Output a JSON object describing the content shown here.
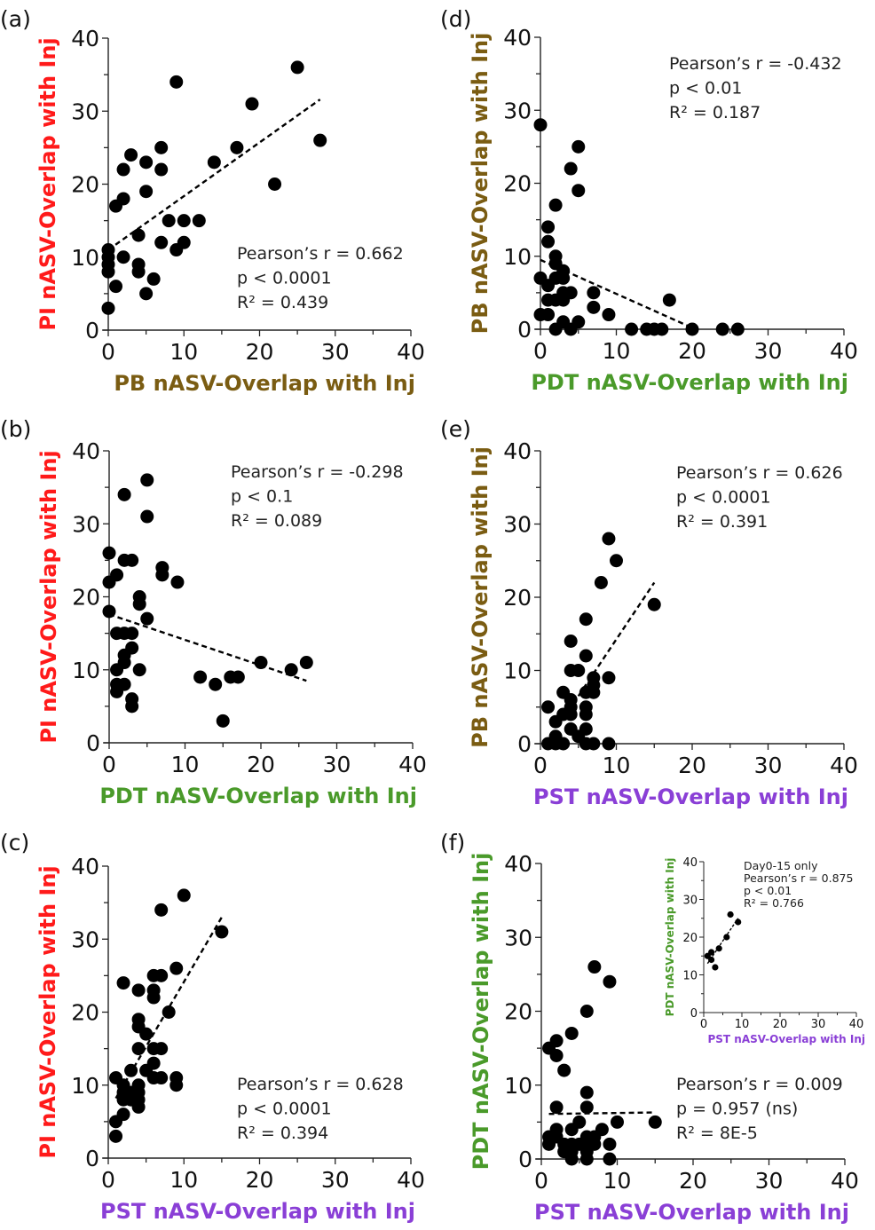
{
  "colors": {
    "PI": "#ff1a1a",
    "PB": "#7a5c12",
    "PDT": "#4a9a2a",
    "PST": "#8a3fd6",
    "points": "#000000",
    "axis": "#222222"
  },
  "chart_data": [
    {
      "id": "a",
      "type": "scatter",
      "panel_label": "(a)",
      "xlabel": "PB nASV-Overlap with Inj",
      "xlabel_group": "PB",
      "ylabel": "PI nASV-Overlap with Inj",
      "ylabel_group": "PI",
      "xlim": [
        0,
        40
      ],
      "ylim": [
        0,
        40
      ],
      "xticks": [
        "0",
        "10",
        "20",
        "30",
        "40"
      ],
      "yticks": [
        "0",
        "10",
        "20",
        "30",
        "40"
      ],
      "grid": false,
      "stats": [
        "Pearson’s r = 0.662",
        "p < 0.0001",
        "R² = 0.439"
      ],
      "stats_position": "bottom-right",
      "fit_line": {
        "x": [
          0,
          28
        ],
        "y": [
          11,
          31.6
        ]
      },
      "points": [
        [
          0,
          3
        ],
        [
          0,
          8
        ],
        [
          0,
          9
        ],
        [
          0,
          10
        ],
        [
          0,
          11
        ],
        [
          1,
          6
        ],
        [
          1,
          17
        ],
        [
          2,
          10
        ],
        [
          2,
          18
        ],
        [
          2,
          22
        ],
        [
          3,
          24
        ],
        [
          4,
          8
        ],
        [
          4,
          9
        ],
        [
          4,
          13
        ],
        [
          5,
          5
        ],
        [
          5,
          19
        ],
        [
          5,
          23
        ],
        [
          6,
          7
        ],
        [
          7,
          12
        ],
        [
          7,
          22
        ],
        [
          7,
          25
        ],
        [
          8,
          15
        ],
        [
          9,
          11
        ],
        [
          9,
          34
        ],
        [
          10,
          12
        ],
        [
          10,
          15
        ],
        [
          12,
          15
        ],
        [
          14,
          23
        ],
        [
          17,
          25
        ],
        [
          19,
          31
        ],
        [
          22,
          20
        ],
        [
          25,
          36
        ],
        [
          28,
          26
        ]
      ]
    },
    {
      "id": "b",
      "type": "scatter",
      "panel_label": "(b)",
      "xlabel": "PDT nASV-Overlap with Inj",
      "xlabel_group": "PDT",
      "ylabel": "PI nASV-Overlap with Inj",
      "ylabel_group": "PI",
      "xlim": [
        0,
        40
      ],
      "ylim": [
        0,
        40
      ],
      "xticks": [
        "0",
        "10",
        "20",
        "30",
        "40"
      ],
      "yticks": [
        "0",
        "10",
        "20",
        "30",
        "40"
      ],
      "grid": false,
      "stats": [
        "Pearson’s r = -0.298",
        "p < 0.1",
        "R² = 0.089"
      ],
      "stats_position": "top-right",
      "fit_line": {
        "x": [
          0,
          26
        ],
        "y": [
          17.6,
          8.5
        ]
      },
      "points": [
        [
          0,
          18
        ],
        [
          0,
          22
        ],
        [
          0,
          26
        ],
        [
          1,
          7
        ],
        [
          1,
          8
        ],
        [
          1,
          10
        ],
        [
          1,
          15
        ],
        [
          1,
          23
        ],
        [
          2,
          8
        ],
        [
          2,
          11
        ],
        [
          2,
          12
        ],
        [
          2,
          15
        ],
        [
          2,
          25
        ],
        [
          2,
          34
        ],
        [
          3,
          5
        ],
        [
          3,
          6
        ],
        [
          3,
          13
        ],
        [
          3,
          15
        ],
        [
          3,
          25
        ],
        [
          4,
          10
        ],
        [
          4,
          19
        ],
        [
          4,
          20
        ],
        [
          5,
          17
        ],
        [
          5,
          31
        ],
        [
          5,
          36
        ],
        [
          7,
          23
        ],
        [
          7,
          24
        ],
        [
          9,
          22
        ],
        [
          12,
          9
        ],
        [
          14,
          8
        ],
        [
          15,
          3
        ],
        [
          16,
          9
        ],
        [
          17,
          9
        ],
        [
          20,
          11
        ],
        [
          24,
          10
        ],
        [
          26,
          11
        ]
      ]
    },
    {
      "id": "c",
      "type": "scatter",
      "panel_label": "(c)",
      "xlabel": "PST nASV-Overlap with Inj",
      "xlabel_group": "PST",
      "ylabel": "PI nASV-Overlap with Inj",
      "ylabel_group": "PI",
      "xlim": [
        0,
        40
      ],
      "ylim": [
        0,
        40
      ],
      "xticks": [
        "0",
        "10",
        "20",
        "30",
        "40"
      ],
      "yticks": [
        "0",
        "10",
        "20",
        "30",
        "40"
      ],
      "grid": false,
      "stats": [
        "Pearson’s r = 0.628",
        "p < 0.0001",
        "R² = 0.394"
      ],
      "stats_position": "bottom-right",
      "fit_line": {
        "x": [
          1,
          15
        ],
        "y": [
          8.2,
          33
        ]
      },
      "points": [
        [
          1,
          3
        ],
        [
          1,
          5
        ],
        [
          1,
          11
        ],
        [
          2,
          6
        ],
        [
          2,
          8
        ],
        [
          2,
          9
        ],
        [
          2,
          10
        ],
        [
          2,
          24
        ],
        [
          3,
          8
        ],
        [
          3,
          9
        ],
        [
          3,
          12
        ],
        [
          4,
          7
        ],
        [
          4,
          8
        ],
        [
          4,
          9
        ],
        [
          4,
          10
        ],
        [
          4,
          15
        ],
        [
          4,
          18
        ],
        [
          4,
          19
        ],
        [
          4,
          23
        ],
        [
          5,
          12
        ],
        [
          5,
          17
        ],
        [
          6,
          11
        ],
        [
          6,
          13
        ],
        [
          6,
          15
        ],
        [
          6,
          22
        ],
        [
          6,
          23
        ],
        [
          6,
          25
        ],
        [
          7,
          11
        ],
        [
          7,
          15
        ],
        [
          7,
          25
        ],
        [
          7,
          34
        ],
        [
          8,
          20
        ],
        [
          9,
          10
        ],
        [
          9,
          11
        ],
        [
          9,
          26
        ],
        [
          10,
          36
        ],
        [
          15,
          31
        ]
      ]
    },
    {
      "id": "d",
      "type": "scatter",
      "panel_label": "(d)",
      "xlabel": "PDT nASV-Overlap with Inj",
      "xlabel_group": "PDT",
      "ylabel": "PB nASV-Overlap with Inj",
      "ylabel_group": "PB",
      "xlim": [
        0,
        40
      ],
      "ylim": [
        0,
        40
      ],
      "xticks": [
        "0",
        "10",
        "20",
        "30",
        "40"
      ],
      "yticks": [
        "0",
        "10",
        "20",
        "30",
        "40"
      ],
      "grid": false,
      "stats": [
        "Pearson’s r = -0.432",
        "p < 0.01",
        "R² = 0.187"
      ],
      "stats_position": "top-right",
      "fit_line": {
        "x": [
          0,
          20
        ],
        "y": [
          9.5,
          0.2
        ]
      },
      "points": [
        [
          0,
          2
        ],
        [
          0,
          7
        ],
        [
          0,
          28
        ],
        [
          1,
          2
        ],
        [
          1,
          4
        ],
        [
          1,
          6
        ],
        [
          1,
          12
        ],
        [
          1,
          14
        ],
        [
          2,
          0
        ],
        [
          2,
          4
        ],
        [
          2,
          7
        ],
        [
          2,
          9
        ],
        [
          2,
          10
        ],
        [
          2,
          17
        ],
        [
          3,
          1
        ],
        [
          3,
          4
        ],
        [
          3,
          5
        ],
        [
          3,
          7
        ],
        [
          3,
          8
        ],
        [
          4,
          0
        ],
        [
          4,
          5
        ],
        [
          4,
          22
        ],
        [
          5,
          1
        ],
        [
          5,
          19
        ],
        [
          5,
          25
        ],
        [
          7,
          3
        ],
        [
          7,
          5
        ],
        [
          9,
          2
        ],
        [
          12,
          0
        ],
        [
          14,
          0
        ],
        [
          15,
          0
        ],
        [
          16,
          0
        ],
        [
          17,
          4
        ],
        [
          20,
          0
        ],
        [
          24,
          0
        ],
        [
          26,
          0
        ]
      ]
    },
    {
      "id": "e",
      "type": "scatter",
      "panel_label": "(e)",
      "xlabel": "PST nASV-Overlap with Inj",
      "xlabel_group": "PST",
      "ylabel": "PB nASV-Overlap with Inj",
      "ylabel_group": "PB",
      "xlim": [
        0,
        40
      ],
      "ylim": [
        0,
        40
      ],
      "xticks": [
        "0",
        "10",
        "20",
        "30",
        "40"
      ],
      "yticks": [
        "0",
        "10",
        "20",
        "30",
        "40"
      ],
      "grid": false,
      "stats": [
        "Pearson’s r = 0.626",
        "p < 0.0001",
        "R² = 0.391"
      ],
      "stats_position": "top-right",
      "fit_line": {
        "x": [
          5,
          15
        ],
        "y": [
          6.5,
          22
        ]
      },
      "points": [
        [
          1,
          0
        ],
        [
          1,
          5
        ],
        [
          2,
          0
        ],
        [
          2,
          1
        ],
        [
          2,
          3
        ],
        [
          3,
          0
        ],
        [
          3,
          4
        ],
        [
          3,
          7
        ],
        [
          4,
          2
        ],
        [
          4,
          4
        ],
        [
          4,
          5
        ],
        [
          4,
          6
        ],
        [
          4,
          10
        ],
        [
          4,
          14
        ],
        [
          5,
          1
        ],
        [
          5,
          10
        ],
        [
          6,
          0
        ],
        [
          6,
          2
        ],
        [
          6,
          4
        ],
        [
          6,
          5
        ],
        [
          6,
          7
        ],
        [
          6,
          12
        ],
        [
          6,
          17
        ],
        [
          7,
          0
        ],
        [
          7,
          7
        ],
        [
          7,
          8
        ],
        [
          7,
          9
        ],
        [
          8,
          22
        ],
        [
          9,
          0
        ],
        [
          9,
          9
        ],
        [
          9,
          28
        ],
        [
          10,
          25
        ],
        [
          15,
          19
        ]
      ]
    },
    {
      "id": "f",
      "type": "scatter",
      "panel_label": "(f)",
      "xlabel": "PST nASV-Overlap with Inj",
      "xlabel_group": "PST",
      "ylabel": "PDT nASV-Overlap with Inj",
      "ylabel_group": "PDT",
      "xlim": [
        0,
        40
      ],
      "ylim": [
        0,
        40
      ],
      "xticks": [
        "0",
        "10",
        "20",
        "30",
        "40"
      ],
      "yticks": [
        "0",
        "10",
        "20",
        "30",
        "40"
      ],
      "grid": false,
      "stats": [
        "Pearson’s r = 0.009",
        "p = 0.957 (ns)",
        "R² = 8E-5"
      ],
      "stats_position": "bottom-right",
      "fit_line": {
        "x": [
          1,
          15
        ],
        "y": [
          6.1,
          6.3
        ]
      },
      "points": [
        [
          1,
          2
        ],
        [
          1,
          3
        ],
        [
          1,
          15
        ],
        [
          2,
          3
        ],
        [
          2,
          4
        ],
        [
          2,
          7
        ],
        [
          2,
          14
        ],
        [
          2,
          16
        ],
        [
          3,
          1
        ],
        [
          3,
          2
        ],
        [
          3,
          12
        ],
        [
          4,
          0
        ],
        [
          4,
          1
        ],
        [
          4,
          2
        ],
        [
          4,
          4
        ],
        [
          4,
          17
        ],
        [
          5,
          2
        ],
        [
          5,
          5
        ],
        [
          6,
          0
        ],
        [
          6,
          1
        ],
        [
          6,
          2
        ],
        [
          6,
          3
        ],
        [
          6,
          7
        ],
        [
          6,
          9
        ],
        [
          6,
          20
        ],
        [
          7,
          2
        ],
        [
          7,
          3
        ],
        [
          7,
          26
        ],
        [
          8,
          4
        ],
        [
          9,
          0
        ],
        [
          9,
          2
        ],
        [
          9,
          24
        ],
        [
          10,
          5
        ],
        [
          15,
          5
        ]
      ],
      "inset": {
        "type": "scatter",
        "xlabel": "PST nASV-Overlap with Inj",
        "xlabel_group": "PST",
        "ylabel": "PDT nASV-Overlap with Inj",
        "ylabel_group": "PDT",
        "xlim": [
          0,
          40
        ],
        "ylim": [
          0,
          40
        ],
        "xticks": [
          "0",
          "10",
          "20",
          "30",
          "40"
        ],
        "yticks": [
          "0",
          "10",
          "20",
          "30",
          "40"
        ],
        "stats": [
          "Day0-15 only",
          "Pearson’s r = 0.875",
          "p < 0.01",
          "R² = 0.766"
        ],
        "stats_position": "top-right",
        "fit_line": {
          "x": [
            1,
            9
          ],
          "y": [
            13,
            25
          ]
        },
        "points": [
          [
            1,
            15
          ],
          [
            2,
            14
          ],
          [
            2,
            16
          ],
          [
            3,
            12
          ],
          [
            4,
            17
          ],
          [
            6,
            20
          ],
          [
            7,
            26
          ],
          [
            9,
            24
          ]
        ]
      }
    }
  ]
}
